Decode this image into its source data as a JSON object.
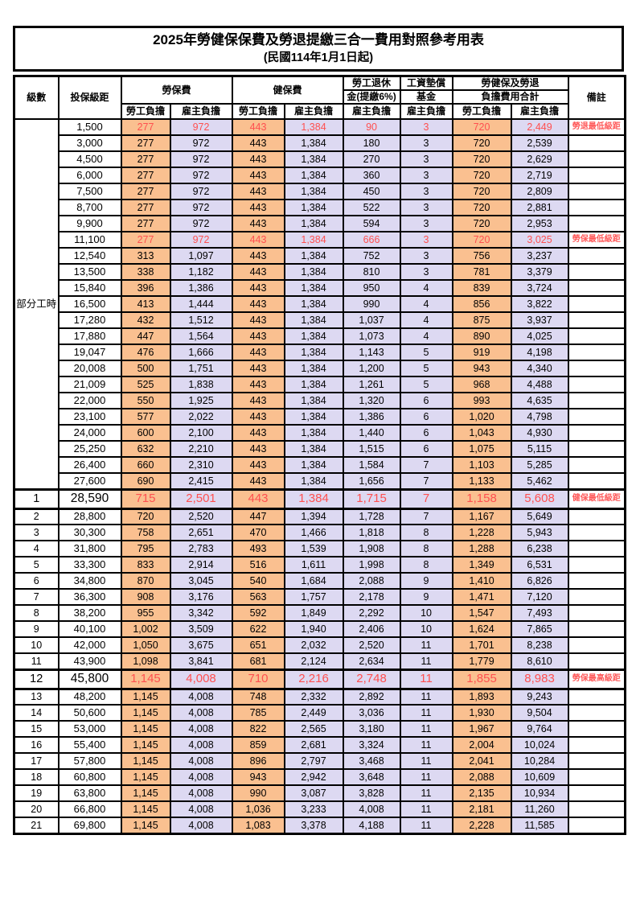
{
  "title": "2025年勞健保保費及勞退提繳三合一費用對照參考用表",
  "subtitle": "(民國114年1月1日起)",
  "colors": {
    "employee_share_bg": "#FAC090",
    "employer_share_bg": "#DDD9F2",
    "highlight_text": "#FF5050",
    "border": "#000000"
  },
  "header": {
    "level": "級數",
    "bracket": "投保級距",
    "labor_insurance": "勞保費",
    "health_insurance": "健保費",
    "pension_line1": "勞工退休",
    "pension_line2": "金(提繳6%)",
    "wage_fund_line1": "工資墊償",
    "wage_fund_line2": "基金",
    "total_line1": "勞健保及勞退",
    "total_line2": "負擔費用合計",
    "remarks": "備註",
    "employee_share": "勞工負擔",
    "employer_share": "雇主負擔"
  },
  "part_time_label": "部分工時",
  "part_time_rowspan": 23,
  "rows": [
    {
      "level": "",
      "bracket": "1,500",
      "values": [
        "277",
        "972",
        "443",
        "1,384",
        "90",
        "3",
        "720",
        "2,449"
      ],
      "note": "勞退最低級距",
      "red": true,
      "emph": false
    },
    {
      "level": "",
      "bracket": "3,000",
      "values": [
        "277",
        "972",
        "443",
        "1,384",
        "180",
        "3",
        "720",
        "2,539"
      ],
      "note": "",
      "red": false,
      "emph": false
    },
    {
      "level": "",
      "bracket": "4,500",
      "values": [
        "277",
        "972",
        "443",
        "1,384",
        "270",
        "3",
        "720",
        "2,629"
      ],
      "note": "",
      "red": false,
      "emph": false
    },
    {
      "level": "",
      "bracket": "6,000",
      "values": [
        "277",
        "972",
        "443",
        "1,384",
        "360",
        "3",
        "720",
        "2,719"
      ],
      "note": "",
      "red": false,
      "emph": false
    },
    {
      "level": "",
      "bracket": "7,500",
      "values": [
        "277",
        "972",
        "443",
        "1,384",
        "450",
        "3",
        "720",
        "2,809"
      ],
      "note": "",
      "red": false,
      "emph": false
    },
    {
      "level": "",
      "bracket": "8,700",
      "values": [
        "277",
        "972",
        "443",
        "1,384",
        "522",
        "3",
        "720",
        "2,881"
      ],
      "note": "",
      "red": false,
      "emph": false
    },
    {
      "level": "",
      "bracket": "9,900",
      "values": [
        "277",
        "972",
        "443",
        "1,384",
        "594",
        "3",
        "720",
        "2,953"
      ],
      "note": "",
      "red": false,
      "emph": false
    },
    {
      "level": "",
      "bracket": "11,100",
      "values": [
        "277",
        "972",
        "443",
        "1,384",
        "666",
        "3",
        "720",
        "3,025"
      ],
      "note": "勞保最低級距",
      "red": true,
      "emph": false
    },
    {
      "level": "",
      "bracket": "12,540",
      "values": [
        "313",
        "1,097",
        "443",
        "1,384",
        "752",
        "3",
        "756",
        "3,237"
      ],
      "note": "",
      "red": false,
      "emph": false
    },
    {
      "level": "",
      "bracket": "13,500",
      "values": [
        "338",
        "1,182",
        "443",
        "1,384",
        "810",
        "3",
        "781",
        "3,379"
      ],
      "note": "",
      "red": false,
      "emph": false
    },
    {
      "level": "",
      "bracket": "15,840",
      "values": [
        "396",
        "1,386",
        "443",
        "1,384",
        "950",
        "4",
        "839",
        "3,724"
      ],
      "note": "",
      "red": false,
      "emph": false
    },
    {
      "level": "",
      "bracket": "16,500",
      "values": [
        "413",
        "1,444",
        "443",
        "1,384",
        "990",
        "4",
        "856",
        "3,822"
      ],
      "note": "",
      "red": false,
      "emph": false
    },
    {
      "level": "",
      "bracket": "17,280",
      "values": [
        "432",
        "1,512",
        "443",
        "1,384",
        "1,037",
        "4",
        "875",
        "3,937"
      ],
      "note": "",
      "red": false,
      "emph": false
    },
    {
      "level": "",
      "bracket": "17,880",
      "values": [
        "447",
        "1,564",
        "443",
        "1,384",
        "1,073",
        "4",
        "890",
        "4,025"
      ],
      "note": "",
      "red": false,
      "emph": false
    },
    {
      "level": "",
      "bracket": "19,047",
      "values": [
        "476",
        "1,666",
        "443",
        "1,384",
        "1,143",
        "5",
        "919",
        "4,198"
      ],
      "note": "",
      "red": false,
      "emph": false
    },
    {
      "level": "",
      "bracket": "20,008",
      "values": [
        "500",
        "1,751",
        "443",
        "1,384",
        "1,200",
        "5",
        "943",
        "4,340"
      ],
      "note": "",
      "red": false,
      "emph": false
    },
    {
      "level": "",
      "bracket": "21,009",
      "values": [
        "525",
        "1,838",
        "443",
        "1,384",
        "1,261",
        "5",
        "968",
        "4,488"
      ],
      "note": "",
      "red": false,
      "emph": false
    },
    {
      "level": "",
      "bracket": "22,000",
      "values": [
        "550",
        "1,925",
        "443",
        "1,384",
        "1,320",
        "6",
        "993",
        "4,635"
      ],
      "note": "",
      "red": false,
      "emph": false
    },
    {
      "level": "",
      "bracket": "23,100",
      "values": [
        "577",
        "2,022",
        "443",
        "1,384",
        "1,386",
        "6",
        "1,020",
        "4,798"
      ],
      "note": "",
      "red": false,
      "emph": false
    },
    {
      "level": "",
      "bracket": "24,000",
      "values": [
        "600",
        "2,100",
        "443",
        "1,384",
        "1,440",
        "6",
        "1,043",
        "4,930"
      ],
      "note": "",
      "red": false,
      "emph": false
    },
    {
      "level": "",
      "bracket": "25,250",
      "values": [
        "632",
        "2,210",
        "443",
        "1,384",
        "1,515",
        "6",
        "1,075",
        "5,115"
      ],
      "note": "",
      "red": false,
      "emph": false
    },
    {
      "level": "",
      "bracket": "26,400",
      "values": [
        "660",
        "2,310",
        "443",
        "1,384",
        "1,584",
        "7",
        "1,103",
        "5,285"
      ],
      "note": "",
      "red": false,
      "emph": false
    },
    {
      "level": "",
      "bracket": "27,600",
      "values": [
        "690",
        "2,415",
        "443",
        "1,384",
        "1,656",
        "7",
        "1,133",
        "5,462"
      ],
      "note": "",
      "red": false,
      "emph": false
    },
    {
      "level": "1",
      "bracket": "28,590",
      "values": [
        "715",
        "2,501",
        "443",
        "1,384",
        "1,715",
        "7",
        "1,158",
        "5,608"
      ],
      "note": "健保最低級距",
      "red": true,
      "emph": true
    },
    {
      "level": "2",
      "bracket": "28,800",
      "values": [
        "720",
        "2,520",
        "447",
        "1,394",
        "1,728",
        "7",
        "1,167",
        "5,649"
      ],
      "note": "",
      "red": false,
      "emph": false
    },
    {
      "level": "3",
      "bracket": "30,300",
      "values": [
        "758",
        "2,651",
        "470",
        "1,466",
        "1,818",
        "8",
        "1,228",
        "5,943"
      ],
      "note": "",
      "red": false,
      "emph": false
    },
    {
      "level": "4",
      "bracket": "31,800",
      "values": [
        "795",
        "2,783",
        "493",
        "1,539",
        "1,908",
        "8",
        "1,288",
        "6,238"
      ],
      "note": "",
      "red": false,
      "emph": false
    },
    {
      "level": "5",
      "bracket": "33,300",
      "values": [
        "833",
        "2,914",
        "516",
        "1,611",
        "1,998",
        "8",
        "1,349",
        "6,531"
      ],
      "note": "",
      "red": false,
      "emph": false
    },
    {
      "level": "6",
      "bracket": "34,800",
      "values": [
        "870",
        "3,045",
        "540",
        "1,684",
        "2,088",
        "9",
        "1,410",
        "6,826"
      ],
      "note": "",
      "red": false,
      "emph": false
    },
    {
      "level": "7",
      "bracket": "36,300",
      "values": [
        "908",
        "3,176",
        "563",
        "1,757",
        "2,178",
        "9",
        "1,471",
        "7,120"
      ],
      "note": "",
      "red": false,
      "emph": false
    },
    {
      "level": "8",
      "bracket": "38,200",
      "values": [
        "955",
        "3,342",
        "592",
        "1,849",
        "2,292",
        "10",
        "1,547",
        "7,493"
      ],
      "note": "",
      "red": false,
      "emph": false
    },
    {
      "level": "9",
      "bracket": "40,100",
      "values": [
        "1,002",
        "3,509",
        "622",
        "1,940",
        "2,406",
        "10",
        "1,624",
        "7,865"
      ],
      "note": "",
      "red": false,
      "emph": false
    },
    {
      "level": "10",
      "bracket": "42,000",
      "values": [
        "1,050",
        "3,675",
        "651",
        "2,032",
        "2,520",
        "11",
        "1,701",
        "8,238"
      ],
      "note": "",
      "red": false,
      "emph": false
    },
    {
      "level": "11",
      "bracket": "43,900",
      "values": [
        "1,098",
        "3,841",
        "681",
        "2,124",
        "2,634",
        "11",
        "1,779",
        "8,610"
      ],
      "note": "",
      "red": false,
      "emph": false
    },
    {
      "level": "12",
      "bracket": "45,800",
      "values": [
        "1,145",
        "4,008",
        "710",
        "2,216",
        "2,748",
        "11",
        "1,855",
        "8,983"
      ],
      "note": "勞保最高級距",
      "red": true,
      "emph": true
    },
    {
      "level": "13",
      "bracket": "48,200",
      "values": [
        "1,145",
        "4,008",
        "748",
        "2,332",
        "2,892",
        "11",
        "1,893",
        "9,243"
      ],
      "note": "",
      "red": false,
      "emph": false
    },
    {
      "level": "14",
      "bracket": "50,600",
      "values": [
        "1,145",
        "4,008",
        "785",
        "2,449",
        "3,036",
        "11",
        "1,930",
        "9,504"
      ],
      "note": "",
      "red": false,
      "emph": false
    },
    {
      "level": "15",
      "bracket": "53,000",
      "values": [
        "1,145",
        "4,008",
        "822",
        "2,565",
        "3,180",
        "11",
        "1,967",
        "9,764"
      ],
      "note": "",
      "red": false,
      "emph": false
    },
    {
      "level": "16",
      "bracket": "55,400",
      "values": [
        "1,145",
        "4,008",
        "859",
        "2,681",
        "3,324",
        "11",
        "2,004",
        "10,024"
      ],
      "note": "",
      "red": false,
      "emph": false
    },
    {
      "level": "17",
      "bracket": "57,800",
      "values": [
        "1,145",
        "4,008",
        "896",
        "2,797",
        "3,468",
        "11",
        "2,041",
        "10,284"
      ],
      "note": "",
      "red": false,
      "emph": false
    },
    {
      "level": "18",
      "bracket": "60,800",
      "values": [
        "1,145",
        "4,008",
        "943",
        "2,942",
        "3,648",
        "11",
        "2,088",
        "10,609"
      ],
      "note": "",
      "red": false,
      "emph": false
    },
    {
      "level": "19",
      "bracket": "63,800",
      "values": [
        "1,145",
        "4,008",
        "990",
        "3,087",
        "3,828",
        "11",
        "2,135",
        "10,934"
      ],
      "note": "",
      "red": false,
      "emph": false
    },
    {
      "level": "20",
      "bracket": "66,800",
      "values": [
        "1,145",
        "4,008",
        "1,036",
        "3,233",
        "4,008",
        "11",
        "2,181",
        "11,260"
      ],
      "note": "",
      "red": false,
      "emph": false
    },
    {
      "level": "21",
      "bracket": "69,800",
      "values": [
        "1,145",
        "4,008",
        "1,083",
        "3,378",
        "4,188",
        "11",
        "2,228",
        "11,585"
      ],
      "note": "",
      "red": false,
      "emph": false
    }
  ],
  "value_column_keys": [
    "labor-ins-employee",
    "labor-ins-employer",
    "health-ins-employee",
    "health-ins-employer",
    "pension-employer",
    "wage-fund-employer",
    "total-employee",
    "total-employer"
  ]
}
